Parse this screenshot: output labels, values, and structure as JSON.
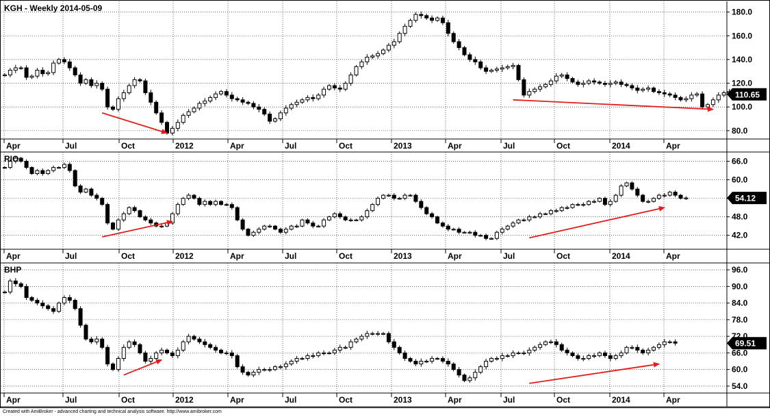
{
  "footer": {
    "credit": "Created with AmiBroker - advanced charting and technical analysis software. http://www.amibroker.com"
  },
  "colors": {
    "background": "#ffffff",
    "candle": "#000000",
    "arrow": "#e31c1c",
    "grid": "#000000",
    "price_label_bg": "#000000",
    "price_label_text": "#ffffff"
  },
  "x_axis": {
    "labels": [
      "Apr",
      "Jul",
      "Oct",
      "2012",
      "Apr",
      "Jul",
      "Oct",
      "2013",
      "Apr",
      "Jul",
      "Oct",
      "2014",
      "Apr"
    ]
  },
  "chart_data": [
    {
      "type": "candlestick",
      "title": "KGH - Weekly 2014-05-09",
      "last_price": "110.65",
      "y_ticks": [
        "180.0",
        "160.0",
        "140.0",
        "120.0",
        "100.0",
        "80.0"
      ],
      "ylim": [
        73,
        189
      ],
      "closes": [
        127,
        131,
        133,
        133,
        125,
        126,
        131,
        128,
        129,
        137,
        140,
        138,
        133,
        127,
        120,
        123,
        118,
        120,
        115,
        100,
        98,
        107,
        112,
        118,
        123,
        122,
        112,
        104,
        95,
        87,
        78,
        82,
        87,
        93,
        96,
        99,
        103,
        105,
        108,
        111,
        113,
        110,
        107,
        106,
        104,
        103,
        100,
        98,
        94,
        88,
        90,
        95,
        99,
        102,
        104,
        106,
        108,
        107,
        110,
        115,
        118,
        116,
        115,
        120,
        127,
        134,
        138,
        142,
        143,
        145,
        148,
        152,
        155,
        162,
        168,
        173,
        178,
        177,
        175,
        173,
        175,
        171,
        162,
        155,
        150,
        144,
        140,
        138,
        133,
        130,
        131,
        132,
        133,
        134,
        135,
        123,
        110,
        113,
        115,
        117,
        119,
        122,
        126,
        127,
        124,
        121,
        119,
        120,
        122,
        121,
        120,
        119,
        120,
        121,
        119,
        118,
        116,
        114,
        115,
        116,
        113,
        112,
        111,
        110,
        108,
        106,
        107,
        110,
        111,
        100,
        102,
        106,
        110,
        112,
        113,
        110,
        110.65
      ],
      "arrows": [
        {
          "from": [
            18,
            95
          ],
          "to": [
            30,
            78
          ]
        },
        {
          "from": [
            94,
            106
          ],
          "to": [
            131,
            98
          ]
        }
      ]
    },
    {
      "type": "candlestick",
      "title": "RIO",
      "last_price": "54.12",
      "y_ticks": [
        "66.0",
        "60.0",
        "54.0",
        "48.0",
        "42.0"
      ],
      "ylim": [
        37.5,
        69
      ],
      "closes": [
        64,
        66,
        67,
        66,
        64,
        62,
        63,
        62,
        63,
        64,
        64,
        65,
        63,
        58,
        56,
        57,
        55,
        54,
        52,
        46,
        44,
        47,
        49,
        51,
        50,
        48,
        47,
        46,
        45,
        45,
        46,
        49,
        52,
        54,
        55,
        54,
        52,
        53,
        52,
        53,
        52,
        52,
        51,
        47,
        44,
        42,
        43,
        44,
        45,
        45,
        44,
        43,
        44,
        45,
        45,
        47,
        46,
        45,
        45,
        47,
        48,
        49,
        48,
        47,
        47,
        47,
        48,
        50,
        52,
        54,
        55,
        55,
        54,
        54,
        55,
        55,
        53,
        51,
        49,
        48,
        46,
        45,
        44,
        44,
        43,
        43,
        43,
        42,
        42,
        41,
        41,
        43,
        44,
        45,
        46,
        47,
        47,
        48,
        48,
        49,
        49,
        50,
        50,
        51,
        51,
        52,
        52,
        52,
        53,
        53,
        54,
        52,
        53,
        55,
        58,
        59,
        57,
        55,
        53,
        53,
        54,
        55,
        55,
        56,
        55,
        54,
        54.12
      ],
      "arrows": [
        {
          "from": [
            18,
            41.5
          ],
          "to": [
            31,
            46.5
          ]
        },
        {
          "from": [
            97,
            41.2
          ],
          "to": [
            122,
            51
          ]
        }
      ]
    },
    {
      "type": "candlestick",
      "title": "BHP",
      "last_price": "69.51",
      "y_ticks": [
        "96.0",
        "90.0",
        "84.0",
        "78.0",
        "72.0",
        "66.0",
        "60.0",
        "54.0"
      ],
      "ylim": [
        51.5,
        98.5
      ],
      "closes": [
        88,
        92,
        91,
        90,
        86,
        85,
        84,
        83,
        82,
        81,
        84,
        86,
        85,
        82,
        76,
        71,
        70,
        71,
        68,
        62,
        60,
        64,
        68,
        70,
        69,
        66,
        63,
        64,
        66,
        67,
        66,
        65,
        67,
        70,
        72,
        71,
        70,
        69,
        68,
        67,
        66,
        66,
        65,
        61,
        59,
        58,
        59,
        60,
        60,
        60,
        61,
        61,
        62,
        63,
        64,
        64,
        65,
        65,
        66,
        66,
        66,
        67,
        68,
        68,
        70,
        71,
        72,
        73,
        73,
        73,
        73,
        70,
        68,
        66,
        64,
        63,
        62,
        63,
        63,
        64,
        64,
        63,
        62,
        60,
        58,
        56,
        57,
        59,
        61,
        63,
        64,
        64,
        65,
        65,
        66,
        66,
        66,
        67,
        68,
        69,
        70,
        70,
        69,
        67,
        66,
        65,
        64,
        64,
        65,
        65,
        66,
        65,
        64,
        65,
        66,
        68,
        68,
        67,
        66,
        67,
        68,
        69,
        70,
        70,
        69.51
      ],
      "arrows": [
        {
          "from": [
            22,
            58
          ],
          "to": [
            29,
            63.5
          ]
        },
        {
          "from": [
            97,
            55
          ],
          "to": [
            121,
            62
          ]
        }
      ]
    }
  ]
}
